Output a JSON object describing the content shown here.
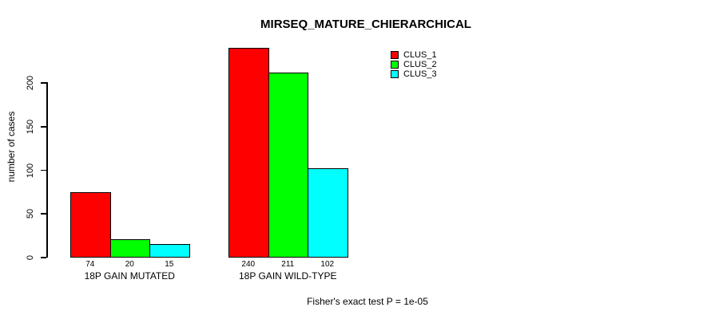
{
  "chart_data": {
    "type": "bar",
    "title": "MIRSEQ_MATURE_CHIERARCHICAL",
    "ylabel": "number of cases",
    "xlabel": "",
    "categories": [
      "18P GAIN MUTATED",
      "18P GAIN WILD-TYPE"
    ],
    "series": [
      {
        "name": "CLUS_1",
        "color": "#FF0000",
        "values": [
          74,
          240
        ]
      },
      {
        "name": "CLUS_2",
        "color": "#00FF00",
        "values": [
          20,
          211
        ]
      },
      {
        "name": "CLUS_3",
        "color": "#00FFFF",
        "values": [
          15,
          102
        ]
      }
    ],
    "bar_value_labels": [
      [
        74,
        20,
        15
      ],
      [
        240,
        211,
        102
      ]
    ],
    "yticks": [
      0,
      50,
      100,
      150,
      200
    ],
    "ylim": [
      0,
      245
    ],
    "grid": false,
    "legend_position": "top-right-inside",
    "footer": "Fisher's exact test P = 1e-05",
    "colors": {
      "axis": "#000000",
      "text": "#000000",
      "background": "#FFFFFF"
    }
  }
}
